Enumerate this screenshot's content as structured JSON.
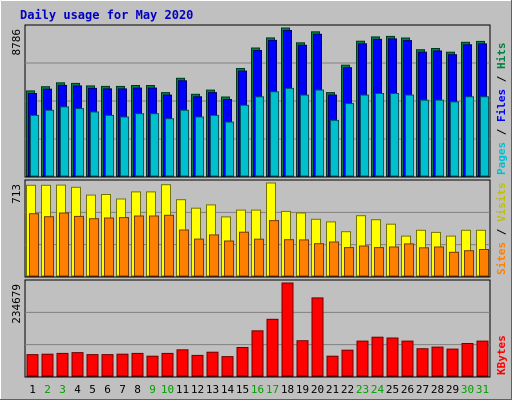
{
  "chart_data": {
    "type": "bar",
    "title": "Daily usage for May 2020",
    "categories": [
      "1",
      "2",
      "3",
      "4",
      "5",
      "6",
      "7",
      "8",
      "9",
      "10",
      "11",
      "12",
      "13",
      "14",
      "15",
      "16",
      "17",
      "18",
      "19",
      "20",
      "21",
      "22",
      "23",
      "24",
      "25",
      "26",
      "27",
      "28",
      "29",
      "30",
      "31"
    ],
    "weekend_days": [
      2,
      3,
      9,
      10,
      16,
      17,
      23,
      24,
      30,
      31
    ],
    "panels": [
      {
        "name": "top",
        "max_label": "8786",
        "ymax": 8786,
        "series": [
          {
            "name": "Hits",
            "color": "#008040",
            "values": [
              5050,
              5300,
              5530,
              5500,
              5350,
              5320,
              5320,
              5370,
              5370,
              4950,
              5800,
              4850,
              5100,
              4690,
              6380,
              7600,
              8200,
              8786,
              7910,
              8560,
              4950,
              6580,
              8000,
              8260,
              8290,
              8190,
              7500,
              7570,
              7350,
              7940,
              7990
            ]
          },
          {
            "name": "Files",
            "color": "#0000ff",
            "values": [
              4900,
              5150,
              5380,
              5350,
              5200,
              5170,
              5170,
              5220,
              5220,
              4800,
              5650,
              4700,
              4950,
              4540,
              6230,
              7450,
              8050,
              8636,
              7760,
              8410,
              4800,
              6430,
              7850,
              8110,
              8140,
              8040,
              7350,
              7420,
              7200,
              7790,
              7840
            ]
          },
          {
            "name": "Pages",
            "color": "#00c0d0",
            "values": [
              3600,
              3900,
              4100,
              4000,
              3800,
              3600,
              3500,
              3700,
              3700,
              3400,
              3900,
              3500,
              3600,
              3200,
              4200,
              4700,
              5000,
              5200,
              4800,
              5100,
              3300,
              4300,
              4800,
              4900,
              4900,
              4800,
              4500,
              4500,
              4400,
              4700,
              4700
            ]
          }
        ]
      },
      {
        "name": "middle",
        "max_label": "713",
        "ymax": 713,
        "series": [
          {
            "name": "Visits",
            "color": "#ffff00",
            "values": [
              695,
              695,
              697,
              680,
              620,
              625,
              590,
              645,
              645,
              700,
              585,
              520,
              545,
              453,
              505,
              505,
              713,
              495,
              483,
              435,
              415,
              340,
              462,
              432,
              397,
              306,
              350,
              334,
              306,
              350,
              350
            ]
          },
          {
            "name": "Sites",
            "color": "#ff8000",
            "values": [
              478,
              455,
              483,
              457,
              439,
              445,
              448,
              460,
              460,
              465,
              353,
              283,
              315,
              268,
              336,
              282,
              425,
              278,
              277,
              248,
              261,
              218,
              230,
              218,
              222,
              246,
              216,
              222,
              182,
              194,
              203
            ]
          }
        ]
      },
      {
        "name": "bottom",
        "max_label": "234679",
        "ymax": 234679,
        "series": [
          {
            "name": "KBytes",
            "color": "#ff0000",
            "values": [
              54000,
              55000,
              57000,
              59000,
              54000,
              54000,
              55000,
              57000,
              50000,
              57000,
              66000,
              52000,
              60000,
              49000,
              72000,
              114000,
              143000,
              234679,
              89000,
              197000,
              50000,
              65000,
              88000,
              98000,
              96000,
              88000,
              69000,
              73000,
              68000,
              82000,
              88000
            ]
          }
        ]
      }
    ]
  }
}
